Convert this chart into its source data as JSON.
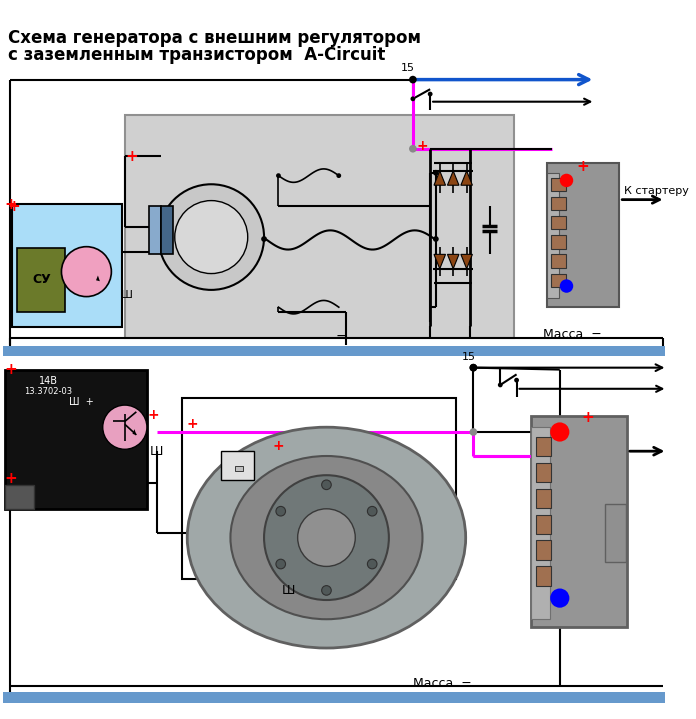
{
  "title_line1": "Схема генератора с внешним регулятором",
  "title_line2": "с заземленным транзистором  A-Circuit",
  "label_15": "15",
  "label_massa": "Масса  −",
  "label_k_starteru": "К стартеру",
  "label_sy": "СУ",
  "label_sh": "Ш",
  "bg_color": "#ffffff",
  "blue_bar": "#6699cc",
  "cyan_box": "#aaddf8",
  "gray_box": "#d0d0d0",
  "diode_color": "#8b4513",
  "pink_wire": "#ff00ff",
  "connector_gray": "#909090",
  "connector_dark": "#707070",
  "red_plus": "#ff0000",
  "pin_color": "#a07050"
}
